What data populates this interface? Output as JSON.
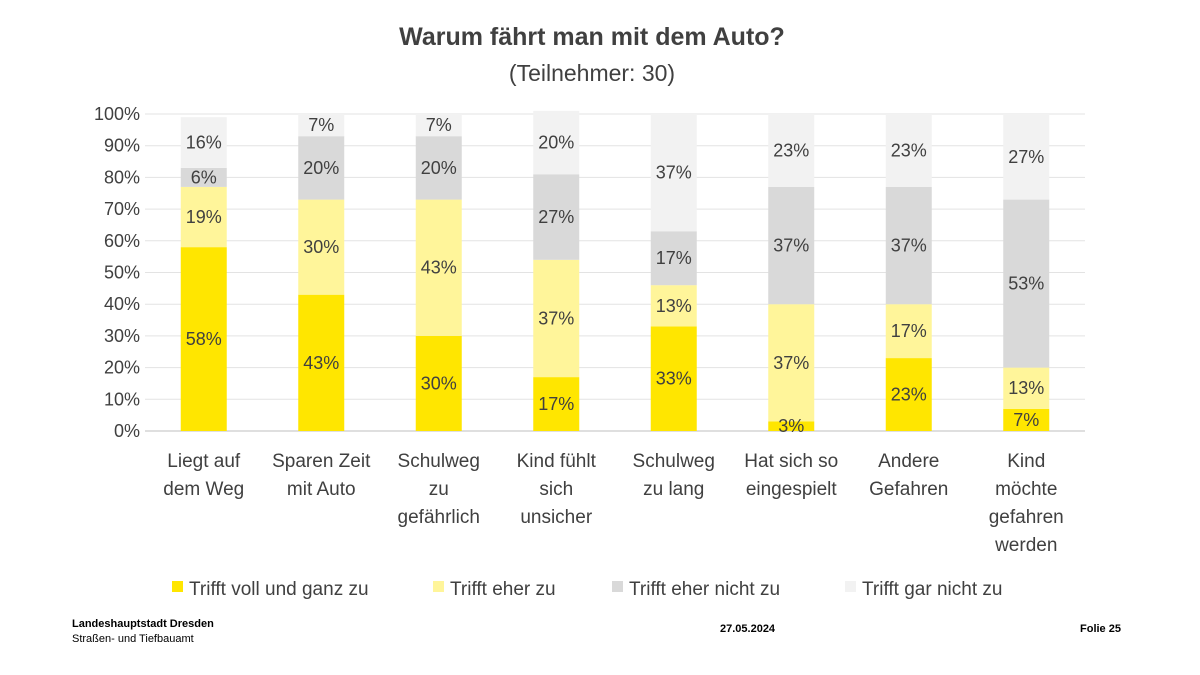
{
  "chart_data": {
    "type": "bar",
    "stacked": true,
    "percent": true,
    "title": "Warum fährt man mit dem Auto?",
    "subtitle": "(Teilnehmer: 30)",
    "ylim": [
      0,
      100
    ],
    "yticks": [
      "0%",
      "10%",
      "20%",
      "30%",
      "40%",
      "50%",
      "60%",
      "70%",
      "80%",
      "90%",
      "100%"
    ],
    "grid": true,
    "legend_position": "bottom",
    "categories": [
      [
        "Liegt auf",
        "dem Weg"
      ],
      [
        "Sparen Zeit",
        "mit Auto"
      ],
      [
        "Schulweg",
        "zu",
        "gefährlich"
      ],
      [
        "Kind fühlt",
        "sich",
        "unsicher"
      ],
      [
        "Schulweg",
        "zu lang"
      ],
      [
        "Hat sich so",
        "eingespielt"
      ],
      [
        "Andere",
        "Gefahren"
      ],
      [
        "Kind",
        "möchte",
        "gefahren",
        "werden"
      ]
    ],
    "series": [
      {
        "name": "Trifft voll und ganz zu",
        "color": "#FFE600",
        "values": [
          58,
          43,
          30,
          17,
          33,
          3,
          23,
          7
        ]
      },
      {
        "name": "Trifft eher zu",
        "color": "#FFF59A",
        "values": [
          19,
          30,
          43,
          37,
          13,
          37,
          17,
          13
        ]
      },
      {
        "name": "Trifft eher nicht zu",
        "color": "#D9D9D9",
        "values": [
          6,
          20,
          20,
          27,
          17,
          37,
          37,
          53
        ]
      },
      {
        "name": "Trifft gar nicht zu",
        "color": "#F2F2F2",
        "values": [
          16,
          7,
          7,
          20,
          37,
          23,
          23,
          27
        ]
      }
    ]
  },
  "footer": {
    "org": "Landeshauptstadt Dresden",
    "dept": "Straßen- und Tiefbauamt",
    "date": "27.05.2024",
    "slide": "Folie 25"
  }
}
